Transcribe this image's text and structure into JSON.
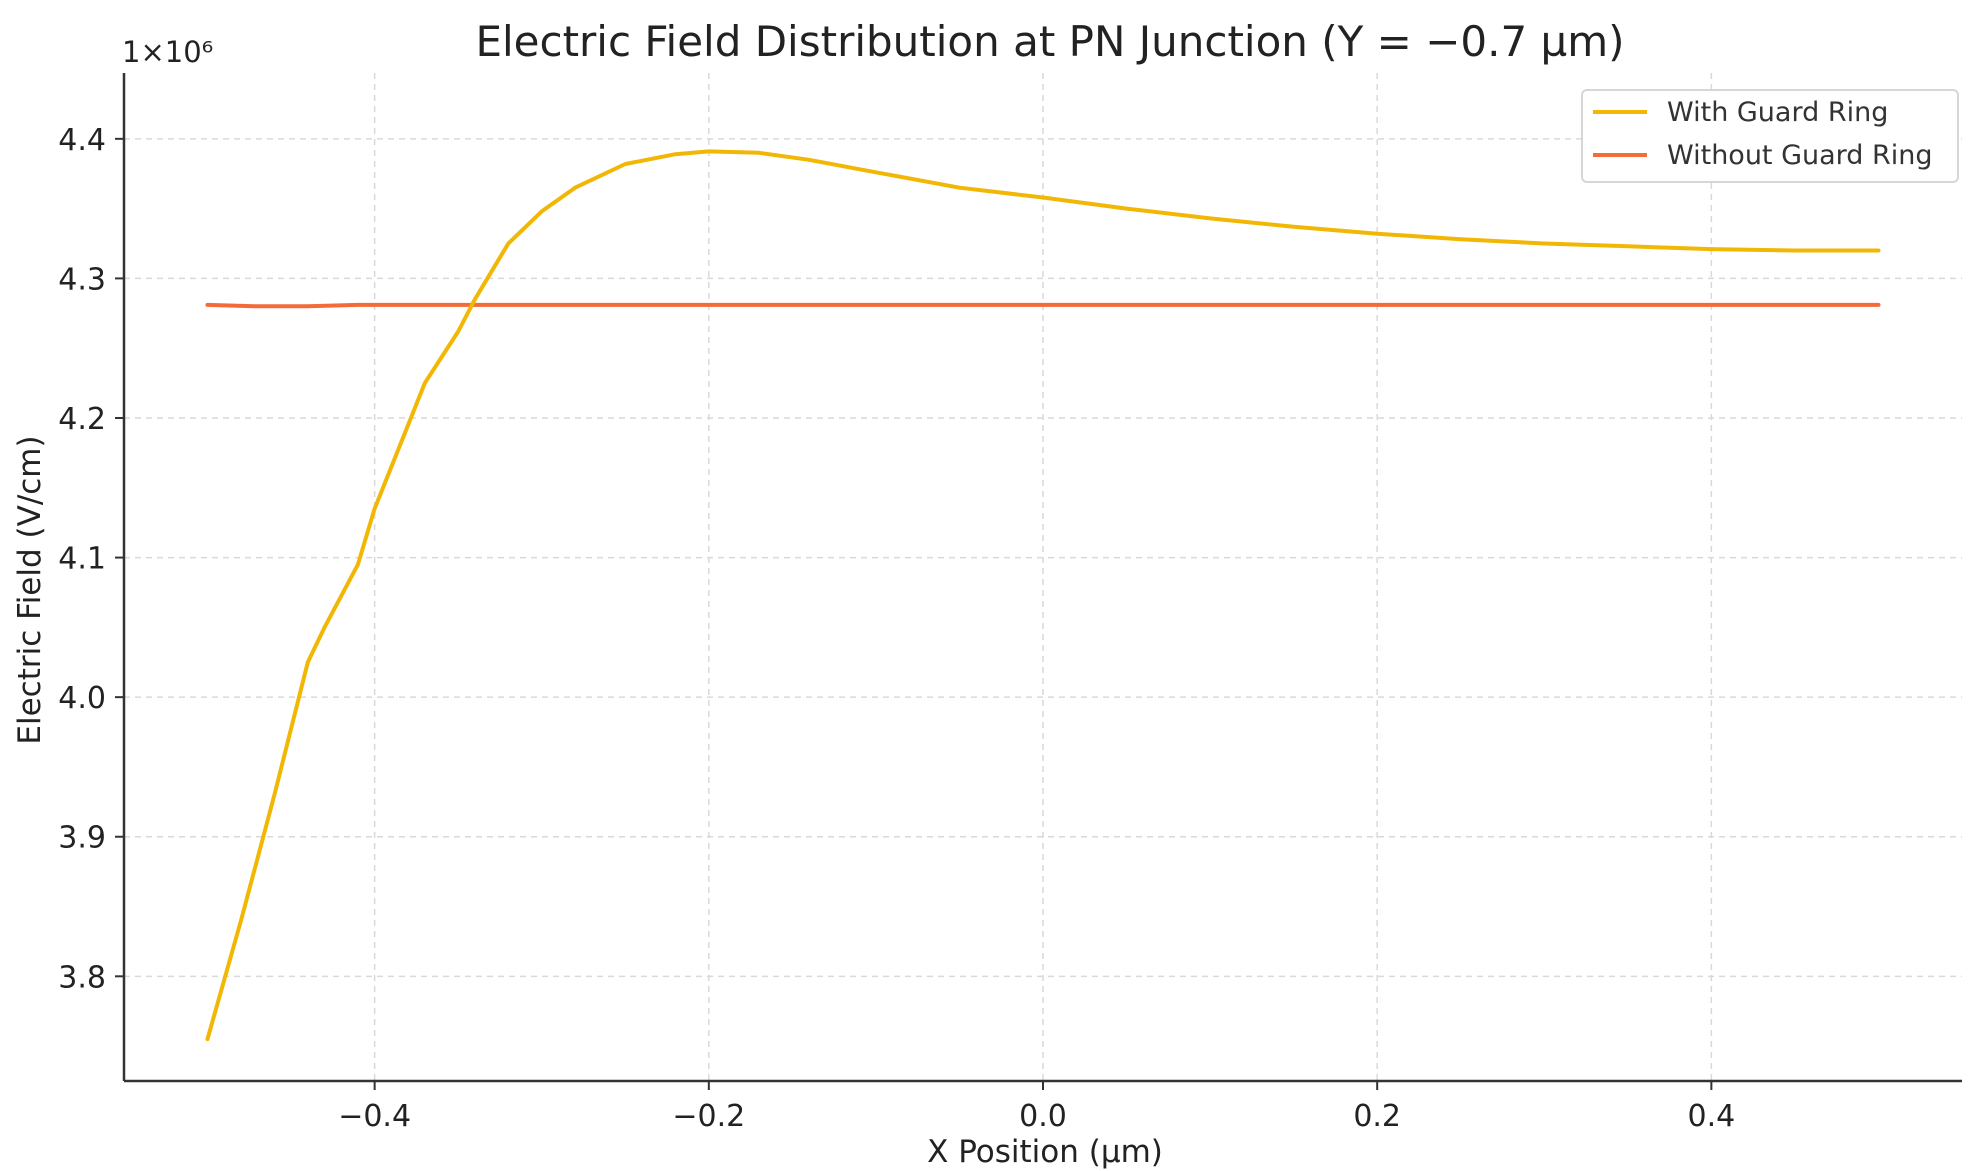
{
  "chart_data": {
    "type": "line",
    "title": "Electric Field Distribution at PN Junction (Y = −0.7 µm)",
    "xlabel": "X Position (µm)",
    "ylabel": "Electric Field (V/cm)",
    "y_offset_label": "1×10⁶",
    "xlim": [
      -0.55,
      0.55
    ],
    "ylim": [
      3.725,
      4.44
    ],
    "xticks": [
      -0.4,
      -0.2,
      0.0,
      0.2,
      0.4
    ],
    "xtick_labels": [
      "−0.4",
      "−0.2",
      "0.0",
      "0.2",
      "0.4"
    ],
    "yticks": [
      3.8,
      3.9,
      4.0,
      4.1,
      4.2,
      4.3,
      4.4
    ],
    "ytick_labels": [
      "3.8",
      "3.9",
      "4.0",
      "4.1",
      "4.2",
      "4.3",
      "4.4"
    ],
    "grid": true,
    "legend_position": "top-right",
    "series": [
      {
        "name": "With Guard Ring",
        "color": "#f2b705",
        "x": [
          -0.5,
          -0.48,
          -0.46,
          -0.44,
          -0.43,
          -0.41,
          -0.4,
          -0.38,
          -0.37,
          -0.35,
          -0.34,
          -0.32,
          -0.3,
          -0.28,
          -0.25,
          -0.22,
          -0.2,
          -0.17,
          -0.14,
          -0.1,
          -0.05,
          0.0,
          0.05,
          0.1,
          0.15,
          0.2,
          0.25,
          0.3,
          0.35,
          0.4,
          0.45,
          0.5
        ],
        "y": [
          3.755,
          3.84,
          3.93,
          4.025,
          4.05,
          4.095,
          4.135,
          4.195,
          4.225,
          4.262,
          4.285,
          4.325,
          4.348,
          4.365,
          4.382,
          4.389,
          4.391,
          4.39,
          4.385,
          4.376,
          4.365,
          4.358,
          4.35,
          4.343,
          4.337,
          4.332,
          4.328,
          4.325,
          4.323,
          4.321,
          4.32,
          4.32
        ]
      },
      {
        "name": "Without Guard Ring",
        "color": "#f26b38",
        "x": [
          -0.5,
          -0.47,
          -0.44,
          -0.41,
          -0.35,
          -0.2,
          0.0,
          0.2,
          0.4,
          0.5
        ],
        "y": [
          4.281,
          4.28,
          4.28,
          4.281,
          4.281,
          4.281,
          4.281,
          4.281,
          4.281,
          4.281
        ]
      }
    ]
  }
}
